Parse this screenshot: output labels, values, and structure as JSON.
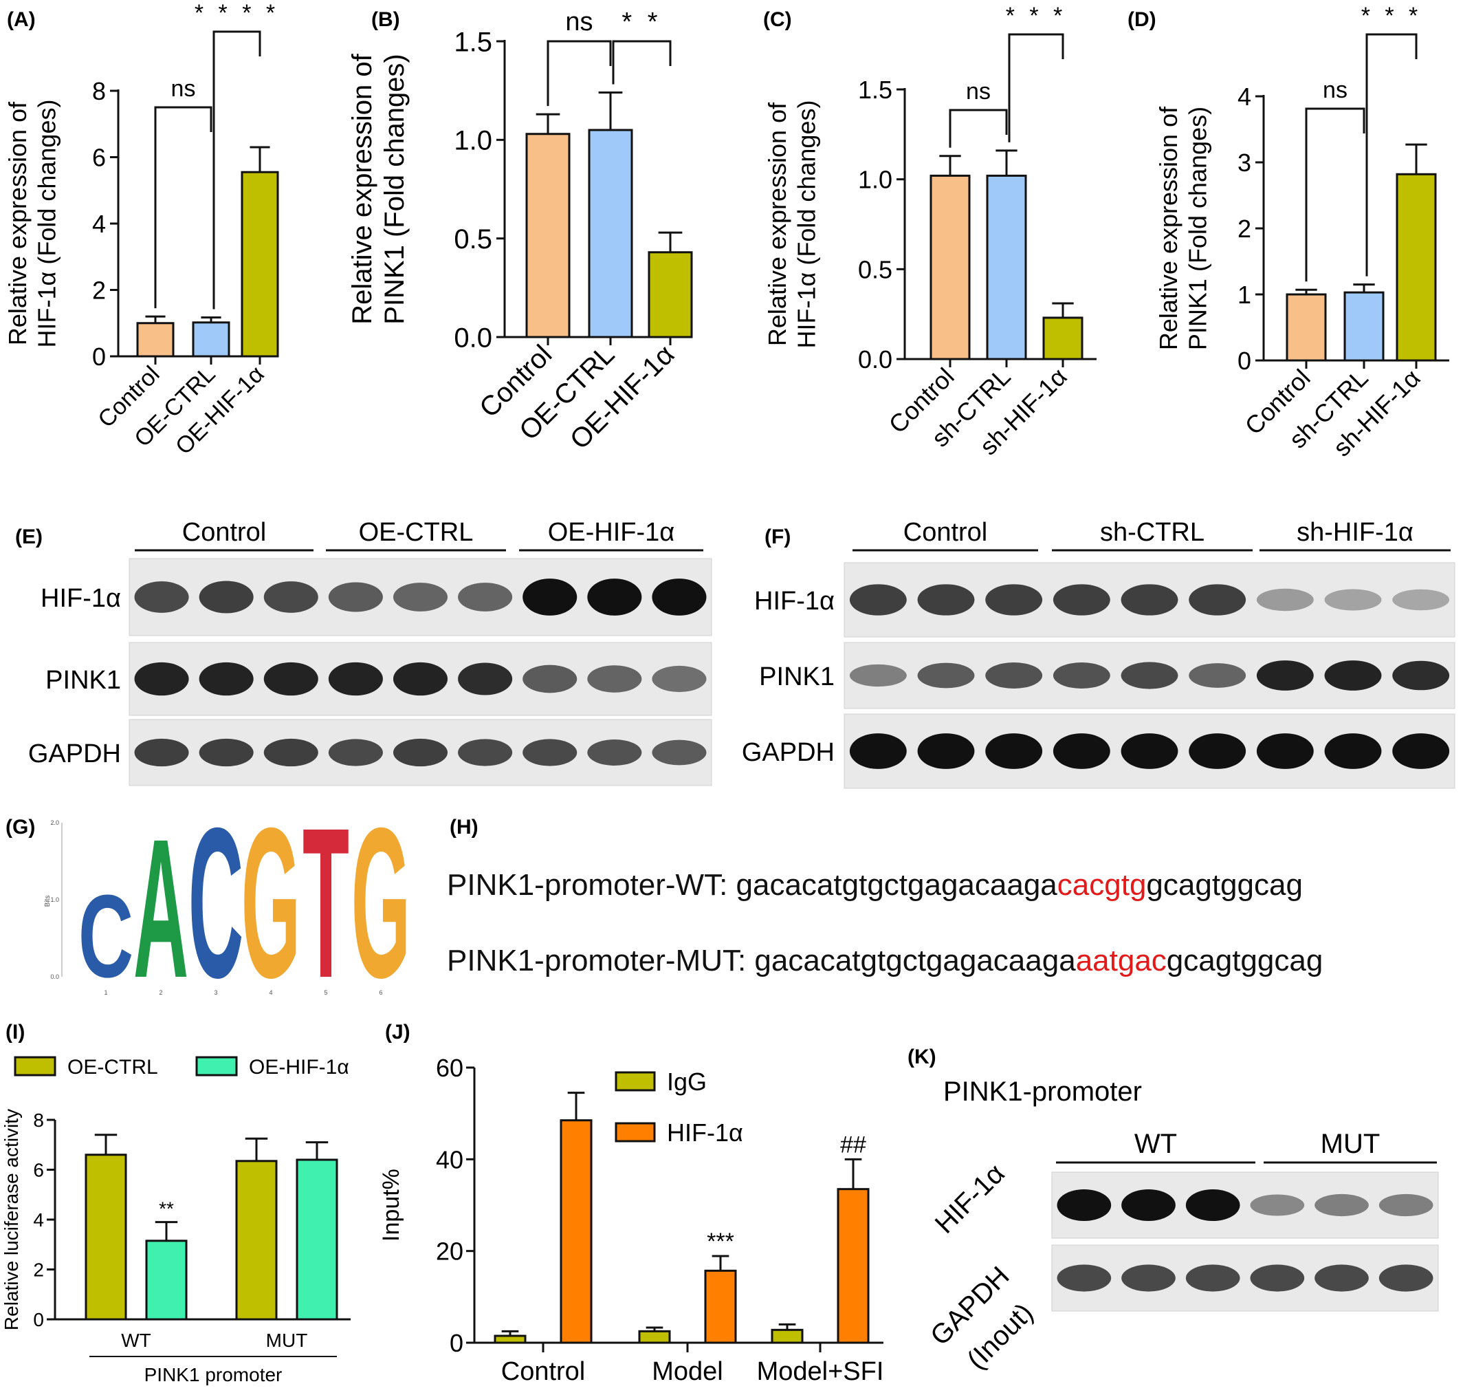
{
  "colors": {
    "control": "#f8bf89",
    "oe_ctrl": "#9ec9f8",
    "hif": "#bfbf00",
    "aqua": "#3ff0ae",
    "orange": "#ff7f00",
    "highlight": "#e21a1a"
  },
  "panel_labels": [
    "(A)",
    "(B)",
    "(C)",
    "(D)",
    "(E)",
    "(F)",
    "(G)",
    "(H)",
    "(I)",
    "(J)",
    "(K)"
  ],
  "chart_data": [
    {
      "panel": "(A)",
      "type": "bar",
      "categories": [
        "Control",
        "OE-CTRL",
        "OE-HIF-1α"
      ],
      "values": [
        1.0,
        1.02,
        5.55
      ],
      "errors": [
        0.2,
        0.15,
        0.75
      ],
      "ylabel": [
        "Relative expression of",
        "HIF-1α (Fold changes)"
      ],
      "ylim": [
        0,
        8
      ],
      "yticks": [
        "0",
        "2",
        "4",
        "6",
        "8"
      ],
      "annotations": [
        {
          "text": "ns",
          "from": 0,
          "to": 1
        },
        {
          "text": "****",
          "from": 1,
          "to": 2
        }
      ]
    },
    {
      "panel": "(B)",
      "type": "bar",
      "categories": [
        "Control",
        "OE-CTRL",
        "OE-HIF-1α"
      ],
      "values": [
        1.03,
        1.05,
        0.43
      ],
      "errors": [
        0.1,
        0.19,
        0.1
      ],
      "ylabel": [
        "Relative expression of",
        "PINK1 (Fold changes)"
      ],
      "ylim": [
        0,
        1.5
      ],
      "yticks": [
        "0.0",
        "0.5",
        "1.0",
        "1.5"
      ],
      "annotations": [
        {
          "text": "ns",
          "from": 0,
          "to": 1
        },
        {
          "text": "**",
          "from": 1,
          "to": 2
        }
      ]
    },
    {
      "panel": "(C)",
      "type": "bar",
      "categories": [
        "Control",
        "sh-CTRL",
        "sh-HIF-1α"
      ],
      "values": [
        1.02,
        1.02,
        0.23
      ],
      "errors": [
        0.11,
        0.14,
        0.08
      ],
      "ylabel": [
        "Relative expression of",
        "HIF-1α (Fold changes)"
      ],
      "ylim": [
        0,
        1.5
      ],
      "yticks": [
        "0.0",
        "0.5",
        "1.0",
        "1.5"
      ],
      "annotations": [
        {
          "text": "ns",
          "from": 0,
          "to": 1
        },
        {
          "text": "***",
          "from": 1,
          "to": 2
        }
      ]
    },
    {
      "panel": "(D)",
      "type": "bar",
      "categories": [
        "Control",
        "sh-CTRL",
        "sh-HIF-1α"
      ],
      "values": [
        1.0,
        1.03,
        2.82
      ],
      "errors": [
        0.07,
        0.12,
        0.45
      ],
      "ylabel": [
        "Relative expression of",
        "PINK1 (Fold changes)"
      ],
      "ylim": [
        0,
        4
      ],
      "yticks": [
        "0",
        "1",
        "2",
        "3",
        "4"
      ],
      "annotations": [
        {
          "text": "ns",
          "from": 0,
          "to": 1
        },
        {
          "text": "***",
          "from": 1,
          "to": 2
        }
      ]
    },
    {
      "panel": "(I)",
      "type": "bar",
      "categories": [
        "WT",
        "MUT"
      ],
      "series": [
        {
          "name": "OE-CTRL",
          "values": [
            6.6,
            6.35
          ],
          "errors": [
            0.8,
            0.9
          ]
        },
        {
          "name": "OE-HIF-1α",
          "values": [
            3.15,
            6.4
          ],
          "errors": [
            0.75,
            0.7
          ]
        }
      ],
      "ylabel": "Relative luciferase activity",
      "xlabel": "PINK1 promoter",
      "ylim": [
        0,
        8
      ],
      "yticks": [
        "0",
        "2",
        "4",
        "6",
        "8"
      ],
      "data_labels": [
        {
          "series": 1,
          "category": 0,
          "text": "**"
        }
      ],
      "legend": "top"
    },
    {
      "panel": "(J)",
      "type": "bar",
      "categories": [
        "Control",
        "Model",
        "Model+SFI"
      ],
      "series": [
        {
          "name": "IgG",
          "values": [
            1.5,
            2.5,
            2.8
          ],
          "errors": [
            1.0,
            0.8,
            1.2
          ]
        },
        {
          "name": "HIF-1α",
          "values": [
            48.5,
            15.7,
            33.5
          ],
          "errors": [
            6.0,
            3.2,
            6.5
          ]
        }
      ],
      "ylabel": "Input%",
      "ylim": [
        0,
        60
      ],
      "yticks": [
        "0",
        "20",
        "40",
        "60"
      ],
      "data_labels": [
        {
          "series": 1,
          "category": 1,
          "text": "***"
        },
        {
          "series": 1,
          "category": 2,
          "text": "##"
        }
      ],
      "legend": "top-center"
    }
  ],
  "blots": {
    "e": {
      "groups": [
        "Control",
        "OE-CTRL",
        "OE-HIF-1α"
      ],
      "rows": [
        "HIF-1α",
        "PINK1",
        "GAPDH"
      ],
      "intensity": [
        [
          0.7,
          0.75,
          0.7,
          0.6,
          0.55,
          0.55,
          1,
          1,
          1
        ],
        [
          0.9,
          0.9,
          0.9,
          0.9,
          0.9,
          0.85,
          0.6,
          0.55,
          0.5
        ],
        [
          0.75,
          0.75,
          0.75,
          0.7,
          0.75,
          0.7,
          0.7,
          0.65,
          0.6
        ]
      ]
    },
    "f": {
      "groups": [
        "Control",
        "sh-CTRL",
        "sh-HIF-1α"
      ],
      "rows": [
        "HIF-1α",
        "PINK1",
        "GAPDH"
      ],
      "intensity": [
        [
          0.75,
          0.75,
          0.75,
          0.75,
          0.75,
          0.75,
          0.25,
          0.2,
          0.18
        ],
        [
          0.4,
          0.6,
          0.65,
          0.65,
          0.7,
          0.55,
          0.9,
          0.9,
          0.85
        ],
        [
          1,
          1,
          1,
          1,
          1,
          1,
          1,
          1,
          1
        ]
      ]
    },
    "k": {
      "title": "PINK1-promoter",
      "groups": [
        "WT",
        "MUT"
      ],
      "rows": [
        "HIF-1α",
        "GAPDH (Inout)"
      ],
      "intensity": [
        [
          1,
          1,
          1,
          0.35,
          0.4,
          0.4
        ],
        [
          0.7,
          0.7,
          0.7,
          0.7,
          0.7,
          0.7
        ]
      ]
    }
  },
  "motif": {
    "letters": [
      {
        "char": "C",
        "color": "#2a5ba8",
        "height": 1.1
      },
      {
        "char": "A",
        "color": "#1e9a46",
        "height": 1.85
      },
      {
        "char": "C",
        "color": "#2a5ba8",
        "height": 2.0
      },
      {
        "char": "G",
        "color": "#f0a830",
        "height": 2.0
      },
      {
        "char": "T",
        "color": "#d42a3a",
        "height": 2.0
      },
      {
        "char": "G",
        "color": "#f0a830",
        "height": 2.0
      }
    ],
    "y_axis_label": "Bits",
    "yticks": [
      "0.0",
      "1.0",
      "2.0"
    ],
    "xticks": [
      "1",
      "2",
      "3",
      "4",
      "5",
      "6"
    ]
  },
  "sequences": {
    "wt": {
      "label": "PINK1-promoter-WT: ",
      "prefix": "gacacatgtgctgagacaaga",
      "highlight": "cacgtg",
      "suffix": "gcagtggcag"
    },
    "mut": {
      "label": "PINK1-promoter-MUT: ",
      "prefix": "gacacatgtgctgagacaaga",
      "highlight": "aatgac",
      "suffix": "gcagtggcag"
    }
  }
}
